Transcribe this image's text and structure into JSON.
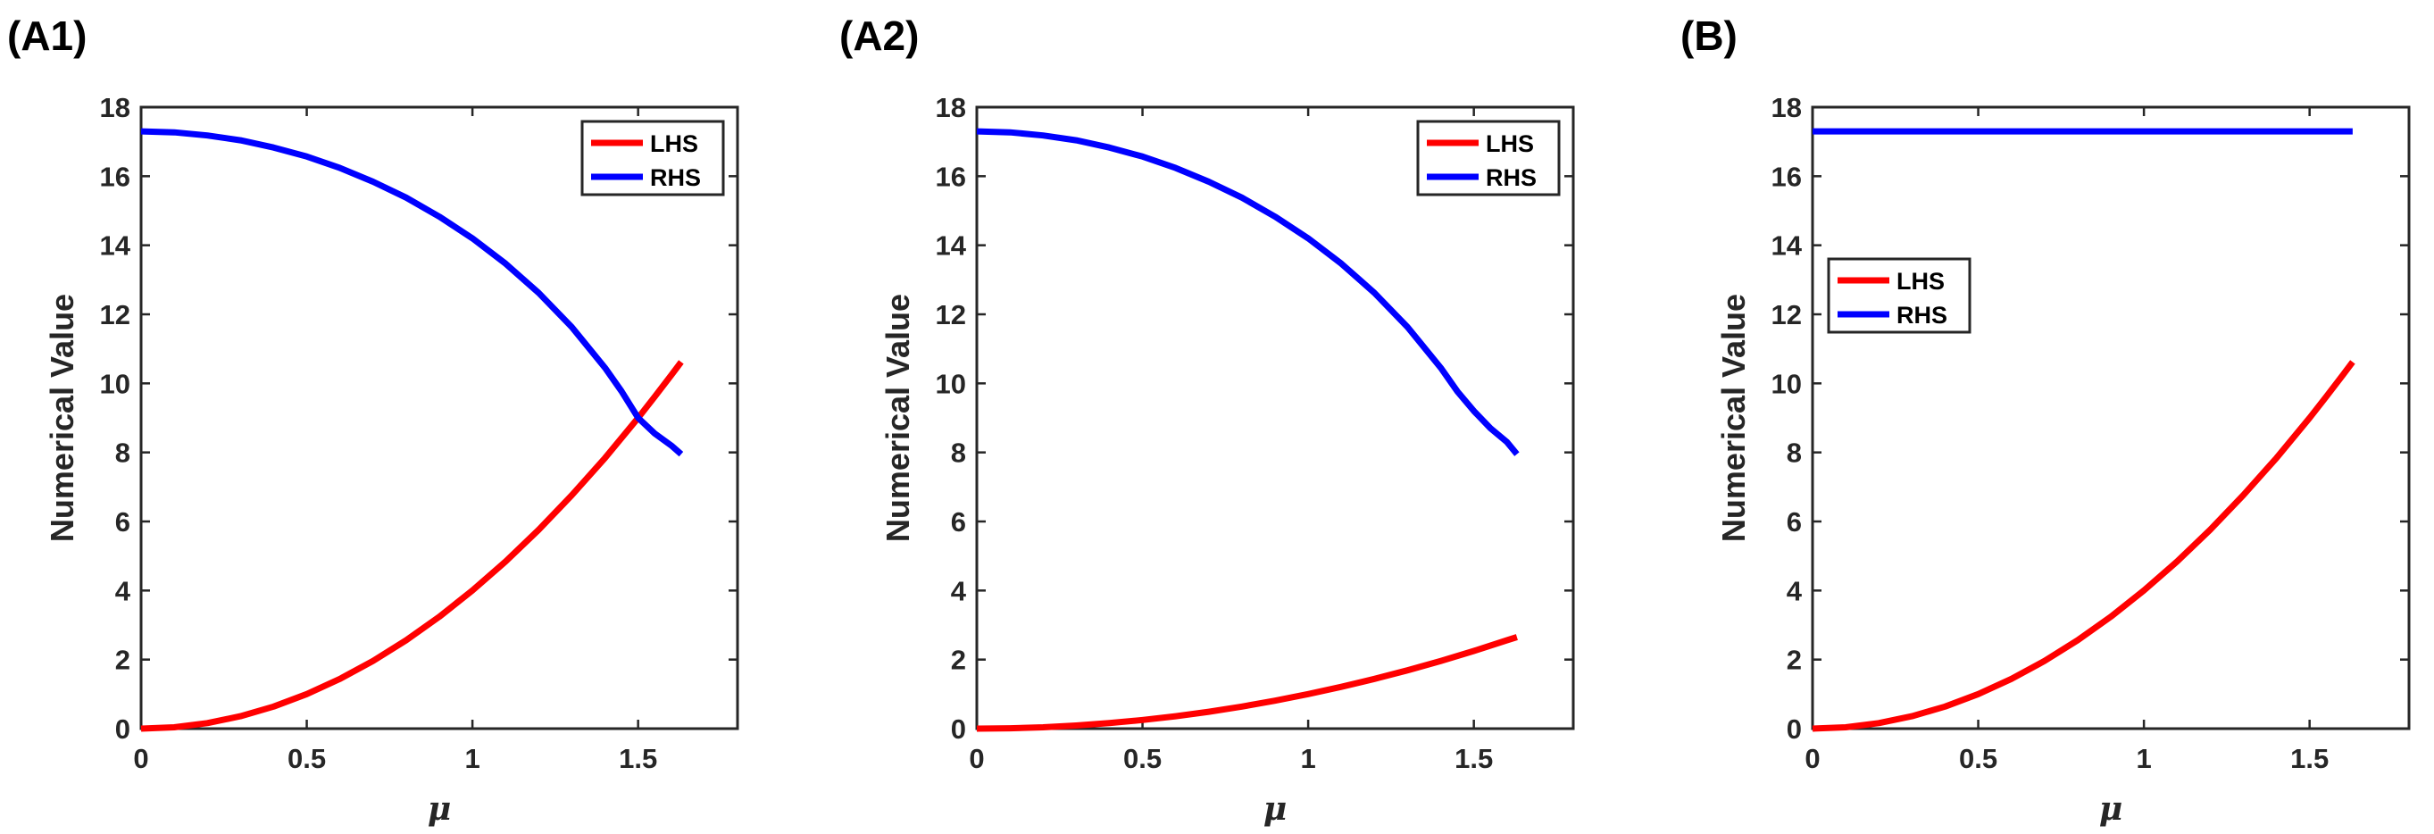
{
  "chart_data": [
    {
      "type": "line",
      "panel_label": "(A1)",
      "xlabel": "μ",
      "ylabel": "Numerical Value",
      "xlim": [
        0,
        1.8
      ],
      "ylim": [
        0,
        18
      ],
      "xticks": [
        0,
        0.5,
        1,
        1.5
      ],
      "xtick_labels": [
        "0",
        "0.5",
        "1",
        "1.5"
      ],
      "yticks": [
        0,
        2,
        4,
        6,
        8,
        10,
        12,
        14,
        16,
        18
      ],
      "ytick_labels": [
        "0",
        "2",
        "4",
        "6",
        "8",
        "10",
        "12",
        "14",
        "16",
        "18"
      ],
      "grid": false,
      "legend_position": "top-right",
      "series": [
        {
          "name": "LHS",
          "color": "#ff0000",
          "x": [
            0,
            0.1,
            0.2,
            0.3,
            0.4,
            0.5,
            0.6,
            0.7,
            0.8,
            0.9,
            1.0,
            1.1,
            1.2,
            1.3,
            1.4,
            1.5,
            1.55,
            1.6,
            1.63
          ],
          "y": [
            0,
            0.04,
            0.16,
            0.36,
            0.64,
            1.0,
            1.44,
            1.96,
            2.56,
            3.24,
            4.0,
            4.84,
            5.76,
            6.76,
            7.84,
            9.0,
            9.61,
            10.24,
            10.62
          ]
        },
        {
          "name": "RHS",
          "color": "#0000ff",
          "x": [
            0,
            0.1,
            0.2,
            0.3,
            0.4,
            0.5,
            0.6,
            0.7,
            0.8,
            0.9,
            1.0,
            1.1,
            1.2,
            1.3,
            1.4,
            1.45,
            1.5,
            1.55,
            1.6,
            1.63
          ],
          "y": [
            17.3,
            17.27,
            17.18,
            17.04,
            16.83,
            16.57,
            16.24,
            15.84,
            15.38,
            14.83,
            14.2,
            13.47,
            12.62,
            11.63,
            10.45,
            9.77,
            9.0,
            8.55,
            8.2,
            7.95
          ]
        }
      ]
    },
    {
      "type": "line",
      "panel_label": "(A2)",
      "xlabel": "μ",
      "ylabel": "Numerical Value",
      "xlim": [
        0,
        1.8
      ],
      "ylim": [
        0,
        18
      ],
      "xticks": [
        0,
        0.5,
        1,
        1.5
      ],
      "xtick_labels": [
        "0",
        "0.5",
        "1",
        "1.5"
      ],
      "yticks": [
        0,
        2,
        4,
        6,
        8,
        10,
        12,
        14,
        16,
        18
      ],
      "ytick_labels": [
        "0",
        "2",
        "4",
        "6",
        "8",
        "10",
        "12",
        "14",
        "16",
        "18"
      ],
      "grid": false,
      "legend_position": "top-right",
      "series": [
        {
          "name": "LHS",
          "color": "#ff0000",
          "x": [
            0,
            0.1,
            0.2,
            0.3,
            0.4,
            0.5,
            0.6,
            0.7,
            0.8,
            0.9,
            1.0,
            1.1,
            1.2,
            1.3,
            1.4,
            1.5,
            1.6,
            1.63
          ],
          "y": [
            0,
            0.01,
            0.04,
            0.09,
            0.16,
            0.25,
            0.36,
            0.49,
            0.64,
            0.81,
            1.0,
            1.21,
            1.44,
            1.69,
            1.96,
            2.25,
            2.56,
            2.65
          ]
        },
        {
          "name": "RHS",
          "color": "#0000ff",
          "x": [
            0,
            0.1,
            0.2,
            0.3,
            0.4,
            0.5,
            0.6,
            0.7,
            0.8,
            0.9,
            1.0,
            1.1,
            1.2,
            1.3,
            1.4,
            1.45,
            1.5,
            1.55,
            1.6,
            1.63
          ],
          "y": [
            17.3,
            17.27,
            17.18,
            17.04,
            16.83,
            16.57,
            16.24,
            15.84,
            15.38,
            14.83,
            14.2,
            13.47,
            12.62,
            11.63,
            10.45,
            9.77,
            9.2,
            8.7,
            8.3,
            7.95
          ]
        }
      ]
    },
    {
      "type": "line",
      "panel_label": "(B)",
      "xlabel": "μ",
      "ylabel": "Numerical Value",
      "xlim": [
        0,
        1.8
      ],
      "ylim": [
        0,
        18
      ],
      "xticks": [
        0,
        0.5,
        1,
        1.5
      ],
      "xtick_labels": [
        "0",
        "0.5",
        "1",
        "1.5"
      ],
      "yticks": [
        0,
        2,
        4,
        6,
        8,
        10,
        12,
        14,
        16,
        18
      ],
      "ytick_labels": [
        "0",
        "2",
        "4",
        "6",
        "8",
        "10",
        "12",
        "14",
        "16",
        "18"
      ],
      "grid": false,
      "legend_position": "top-left",
      "series": [
        {
          "name": "LHS",
          "color": "#ff0000",
          "x": [
            0,
            0.1,
            0.2,
            0.3,
            0.4,
            0.5,
            0.6,
            0.7,
            0.8,
            0.9,
            1.0,
            1.1,
            1.2,
            1.3,
            1.4,
            1.5,
            1.55,
            1.6,
            1.63
          ],
          "y": [
            0,
            0.04,
            0.16,
            0.36,
            0.64,
            1.0,
            1.44,
            1.96,
            2.56,
            3.24,
            4.0,
            4.84,
            5.76,
            6.76,
            7.84,
            9.0,
            9.61,
            10.24,
            10.62
          ]
        },
        {
          "name": "RHS",
          "color": "#0000ff",
          "x": [
            0,
            1.63
          ],
          "y": [
            17.3,
            17.3
          ]
        }
      ]
    }
  ]
}
